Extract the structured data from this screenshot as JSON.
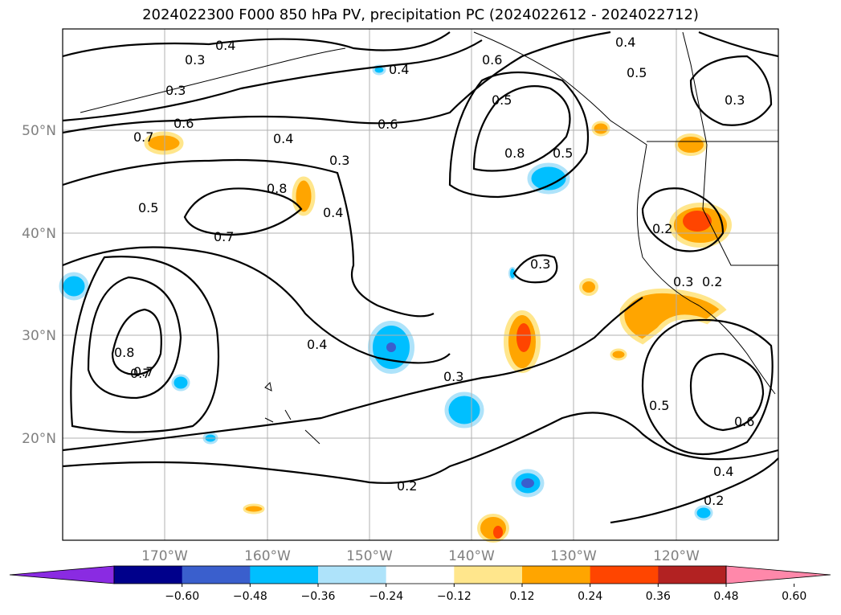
{
  "title": "2024022300 F000 850 hPa PV, precipitation PC (2024022612 - 2024022712)",
  "axes": {
    "lon_ticks": [
      "170°W",
      "160°W",
      "150°W",
      "140°W",
      "130°W",
      "120°W"
    ],
    "lat_ticks": [
      "50°N",
      "40°N",
      "30°N",
      "20°N"
    ]
  },
  "contour_labels": [
    "0.3",
    "0.4",
    "0.4",
    "0.6",
    "0.4",
    "0.4",
    "0.3",
    "0.5",
    "0.5",
    "0.3",
    "0.7",
    "0.6",
    "0.4",
    "0.3",
    "0.8",
    "0.6",
    "0.5",
    "0.7",
    "0.7",
    "0.8",
    "0.5",
    "0.3",
    "0.2",
    "0.3",
    "0.8",
    "0.7",
    "0.4",
    "0.3",
    "0.2",
    "0.5",
    "0.6",
    "0.4",
    "0.2",
    "0.2"
  ],
  "colorbar": {
    "ticks": [
      "−0.60",
      "−0.48",
      "−0.36",
      "−0.24",
      "−0.12",
      "0.12",
      "0.24",
      "0.36",
      "0.48",
      "0.60"
    ],
    "colors": [
      "#8a2be2",
      "#00008b",
      "#3a5fcd",
      "#00bfff",
      "#aee3fa",
      "#ffffff",
      "#ffe68c",
      "#ffa500",
      "#ff4500",
      "#b22222",
      "#ff88aa"
    ]
  }
}
